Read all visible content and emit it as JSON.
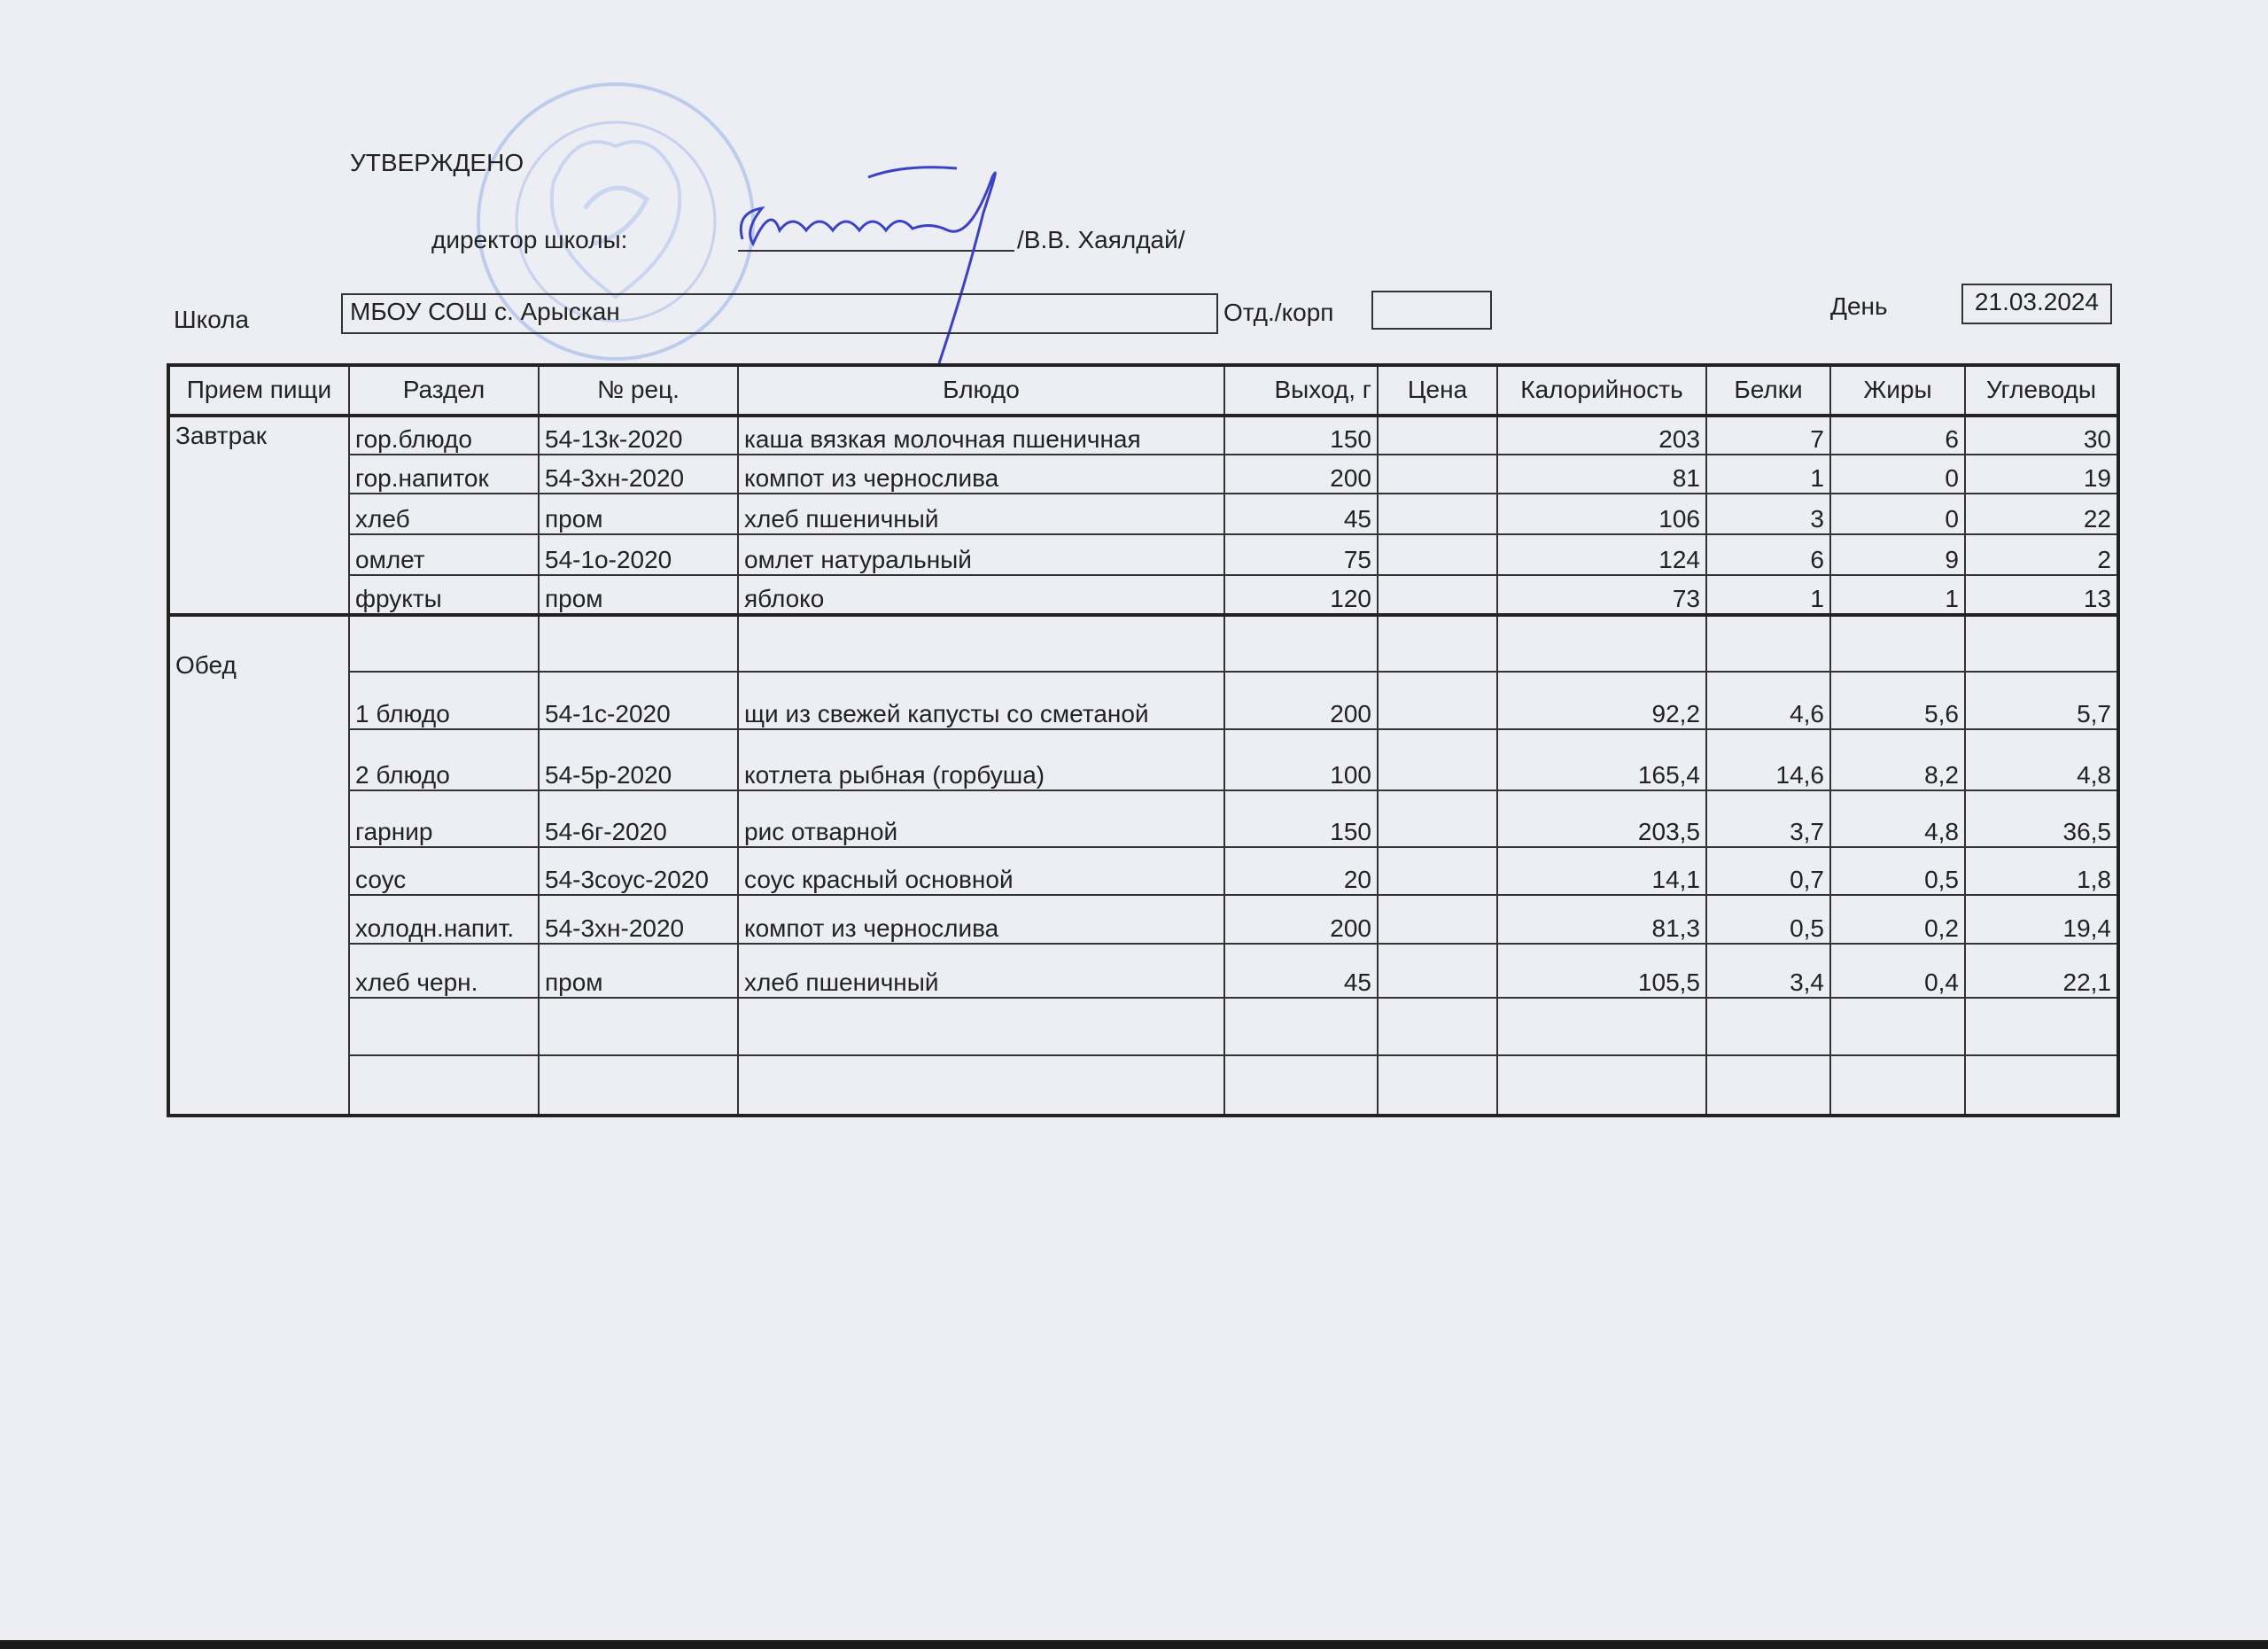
{
  "approval": {
    "title": "УТВЕРЖДЕНО",
    "position_label": "директор школы:",
    "signatory": "/В.В. Хаялдай/"
  },
  "header": {
    "school_label": "Школа",
    "school_value": "МБОУ СОШ с. Арыскан",
    "dept_label": "Отд./корп",
    "dept_value": "",
    "day_label": "День",
    "day_value": "21.03.2024"
  },
  "table": {
    "columns": [
      "Прием пищи",
      "Раздел",
      "№ рец.",
      "Блюдо",
      "Выход, г",
      "Цена",
      "Калорийность",
      "Белки",
      "Жиры",
      "Углеводы"
    ],
    "breakfast": {
      "meal": "Завтрак",
      "rows": [
        {
          "section": "гор.блюдо",
          "recipe": "54-13к-2020",
          "dish": "каша вязкая молочная пшеничная",
          "yield": "150",
          "price": "",
          "kcal": "203",
          "protein": "7",
          "fat": "6",
          "carbs": "30"
        },
        {
          "section": "гор.напиток",
          "recipe": "54-3хн-2020",
          "dish": "компот из чернослива",
          "yield": "200",
          "price": "",
          "kcal": "81",
          "protein": "1",
          "fat": "0",
          "carbs": "19"
        },
        {
          "section": "хлеб",
          "recipe": "пром",
          "dish": "хлеб пшеничный",
          "yield": "45",
          "price": "",
          "kcal": "106",
          "protein": "3",
          "fat": "0",
          "carbs": "22"
        },
        {
          "section": "омлет",
          "recipe": "54-1о-2020",
          "dish": "омлет натуральный",
          "yield": "75",
          "price": "",
          "kcal": "124",
          "protein": "6",
          "fat": "9",
          "carbs": "2"
        },
        {
          "section": "фрукты",
          "recipe": "пром",
          "dish": "яблоко",
          "yield": "120",
          "price": "",
          "kcal": "73",
          "protein": "1",
          "fat": "1",
          "carbs": "13"
        }
      ]
    },
    "lunch": {
      "meal": "Обед",
      "rows": [
        {
          "section": "",
          "recipe": "",
          "dish": "",
          "yield": "",
          "price": "",
          "kcal": "",
          "protein": "",
          "fat": "",
          "carbs": ""
        },
        {
          "section": "1 блюдо",
          "recipe": "54-1с-2020",
          "dish": "щи из свежей капусты со сметаной",
          "yield": "200",
          "price": "",
          "kcal": "92,2",
          "protein": "4,6",
          "fat": "5,6",
          "carbs": "5,7"
        },
        {
          "section": "2 блюдо",
          "recipe": "54-5р-2020",
          "dish": "котлета рыбная (горбуша)",
          "yield": "100",
          "price": "",
          "kcal": "165,4",
          "protein": "14,6",
          "fat": "8,2",
          "carbs": "4,8"
        },
        {
          "section": "гарнир",
          "recipe": "54-6г-2020",
          "dish": "рис отварной",
          "yield": "150",
          "price": "",
          "kcal": "203,5",
          "protein": "3,7",
          "fat": "4,8",
          "carbs": "36,5"
        },
        {
          "section": "соус",
          "recipe": "54-3соус-2020",
          "dish": "соус красный основной",
          "yield": "20",
          "price": "",
          "kcal": "14,1",
          "protein": "0,7",
          "fat": "0,5",
          "carbs": "1,8"
        },
        {
          "section": "холодн.напит.",
          "recipe": "54-3хн-2020",
          "dish": "компот из чернослива",
          "yield": "200",
          "price": "",
          "kcal": "81,3",
          "protein": "0,5",
          "fat": "0,2",
          "carbs": "19,4"
        },
        {
          "section": "хлеб черн.",
          "recipe": "пром",
          "dish": "хлеб пшеничный",
          "yield": "45",
          "price": "",
          "kcal": "105,5",
          "protein": "3,4",
          "fat": "0,4",
          "carbs": "22,1"
        },
        {
          "section": "",
          "recipe": "",
          "dish": "",
          "yield": "",
          "price": "",
          "kcal": "",
          "protein": "",
          "fat": "",
          "carbs": ""
        },
        {
          "section": "",
          "recipe": "",
          "dish": "",
          "yield": "",
          "price": "",
          "kcal": "",
          "protein": "",
          "fat": "",
          "carbs": ""
        }
      ]
    }
  },
  "colors": {
    "stamp": "#7f9fe0",
    "signature": "#3b43c4",
    "ink": "#222222",
    "paper": "#eceef3"
  }
}
